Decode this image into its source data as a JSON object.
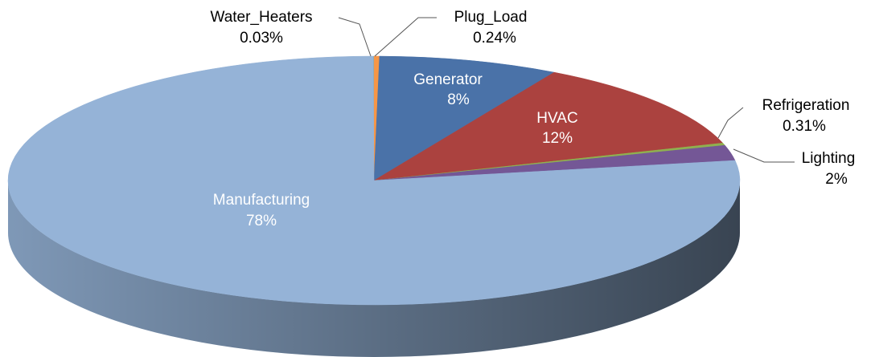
{
  "chart_data": {
    "type": "pie",
    "categories": [
      "Water_Heaters",
      "Plug_Load",
      "Generator",
      "HVAC",
      "Refrigeration",
      "Lighting",
      "Manufacturing"
    ],
    "values": [
      0.03,
      0.24,
      8,
      12,
      0.31,
      2,
      78
    ],
    "value_labels": [
      "0.03%",
      "0.24%",
      "8%",
      "12%",
      "0.31%",
      "2%",
      "78%"
    ],
    "colors": [
      "#4bacc6",
      "#f79646",
      "#4a72a8",
      "#ab423f",
      "#8fb04f",
      "#745796",
      "#95b3d7"
    ]
  }
}
